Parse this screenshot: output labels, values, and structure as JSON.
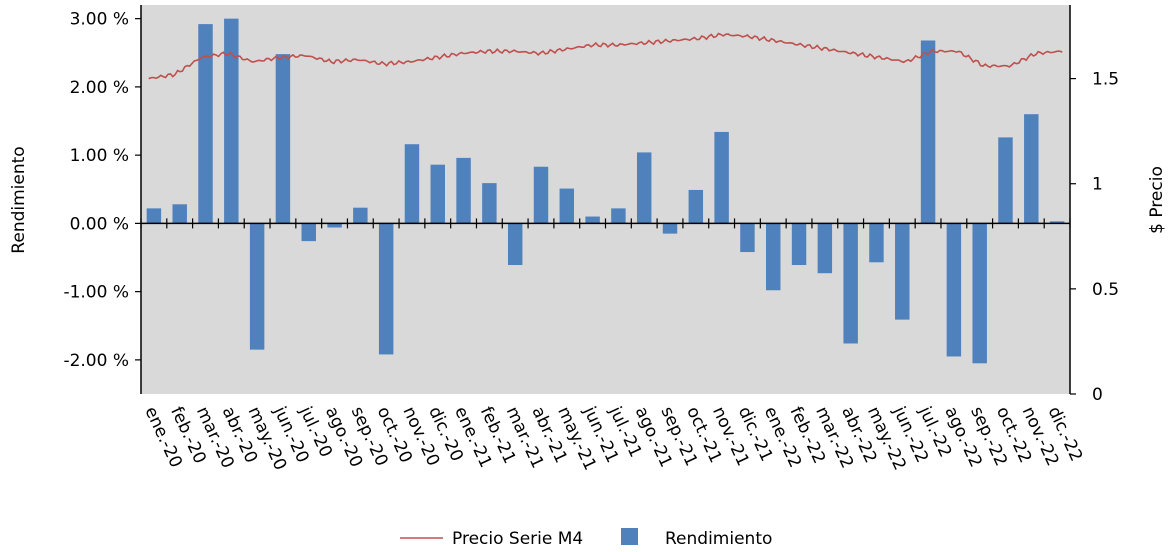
{
  "chart_data": {
    "type": "bar",
    "categories": [
      "ene.-20",
      "feb.-20",
      "mar.-20",
      "abr.-20",
      "may.-20",
      "jun.-20",
      "jul.-20",
      "ago.-20",
      "sep.-20",
      "oct.-20",
      "nov.-20",
      "dic.-20",
      "ene.-21",
      "feb.-21",
      "mar.-21",
      "abr.-21",
      "may.-21",
      "jun.-21",
      "jul.-21",
      "ago.-21",
      "sep.-21",
      "oct.-21",
      "nov.-21",
      "dic.-21",
      "ene.-22",
      "feb.-22",
      "mar.-22",
      "abr.-22",
      "may.-22",
      "jun.-22",
      "jul.-22",
      "ago.-22",
      "sep.-22",
      "oct.-22",
      "nov.-22",
      "dic.-22"
    ],
    "series": [
      {
        "name": "Rendimiento",
        "type": "bar",
        "axis": "left",
        "color": "#4f81bd",
        "values": [
          0.22,
          0.28,
          2.92,
          3.0,
          -1.85,
          2.48,
          -0.26,
          -0.06,
          0.23,
          -1.92,
          1.16,
          0.86,
          0.96,
          0.59,
          -0.61,
          0.83,
          0.51,
          0.1,
          0.22,
          1.04,
          -0.15,
          0.49,
          1.34,
          -0.42,
          -0.98,
          -0.61,
          -0.73,
          -1.76,
          -0.57,
          -1.41,
          2.68,
          -1.95,
          -2.05,
          1.26,
          1.6,
          0.03
        ]
      },
      {
        "name": "Precio Serie M4",
        "type": "line",
        "axis": "right",
        "color": "#c0504d",
        "values": [
          1.5,
          1.52,
          1.6,
          1.62,
          1.58,
          1.6,
          1.61,
          1.58,
          1.59,
          1.57,
          1.58,
          1.6,
          1.62,
          1.63,
          1.63,
          1.62,
          1.64,
          1.66,
          1.66,
          1.67,
          1.68,
          1.69,
          1.71,
          1.7,
          1.68,
          1.66,
          1.64,
          1.62,
          1.6,
          1.58,
          1.63,
          1.63,
          1.56,
          1.56,
          1.62,
          1.63
        ]
      }
    ],
    "y_left": {
      "label": "Rendimiento",
      "ylim": [
        -2.5,
        3.2
      ],
      "ticks": [
        3,
        2,
        1,
        0,
        -1,
        -2
      ],
      "tick_labels": [
        "3.00 %",
        "2.00 %",
        "1.00 %",
        "0.00 %",
        "-1.00 %",
        "-2.00 %"
      ]
    },
    "y_right": {
      "label": "$ Precio",
      "ylim": [
        0,
        1.85
      ],
      "ticks": [
        1.5,
        1,
        0.5,
        0
      ],
      "tick_labels": [
        "1.5",
        "1",
        "0.5",
        "0"
      ]
    },
    "grid": false,
    "plot_background": "#d9d9d9",
    "legend": {
      "position": "bottom",
      "entries": [
        {
          "label": "Precio Serie M4",
          "kind": "line",
          "color": "#c0504d"
        },
        {
          "label": "Rendimiento",
          "kind": "bar",
          "color": "#4f81bd"
        }
      ]
    }
  }
}
